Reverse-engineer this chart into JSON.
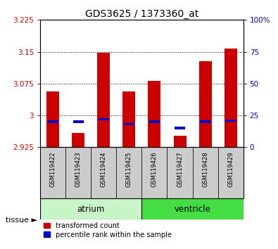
{
  "title": "GDS3625 / 1373360_at",
  "samples": [
    "GSM119422",
    "GSM119423",
    "GSM119424",
    "GSM119425",
    "GSM119426",
    "GSM119427",
    "GSM119428",
    "GSM119429"
  ],
  "red_values": [
    3.057,
    2.958,
    3.148,
    3.057,
    3.082,
    2.952,
    3.127,
    3.158
  ],
  "blue_values_pct": [
    20,
    20,
    22,
    18,
    20,
    15,
    20,
    21
  ],
  "ymin": 2.925,
  "ymax": 3.225,
  "yticks": [
    2.925,
    3.0,
    3.075,
    3.15,
    3.225
  ],
  "ytick_labels": [
    "2.925",
    "3",
    "3.075",
    "3.15",
    "3.225"
  ],
  "right_yticks": [
    0,
    25,
    50,
    75,
    100
  ],
  "right_ytick_labels": [
    "0",
    "25",
    "50",
    "75",
    "100%"
  ],
  "tissues": [
    {
      "label": "atrium",
      "start": 0,
      "end": 4,
      "color": "#c8f5c8"
    },
    {
      "label": "ventricle",
      "start": 4,
      "end": 8,
      "color": "#44dd44"
    }
  ],
  "bar_bottom": 2.925,
  "red_color": "#cc0000",
  "blue_color": "#0000cc",
  "legend_red": "transformed count",
  "legend_blue": "percentile rank within the sample",
  "tissue_label": "tissue ►",
  "left_axis_color": "#cc0000",
  "right_axis_color": "#0000cc",
  "bar_width": 0.5,
  "sample_box_color": "#cccccc",
  "grid_color": "black",
  "bg_color": "white"
}
